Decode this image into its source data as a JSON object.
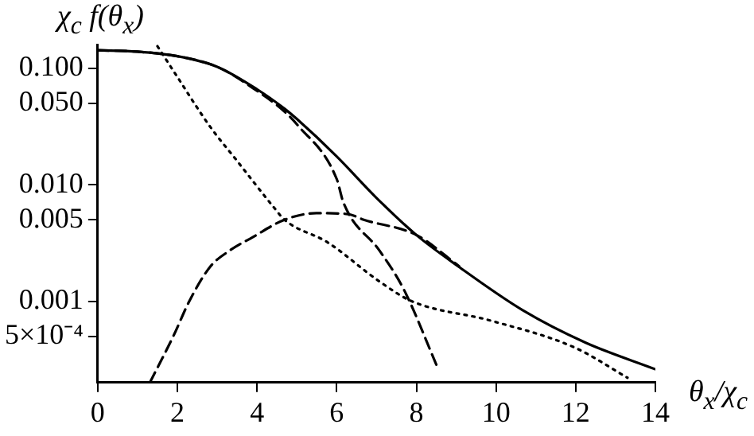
{
  "chart_data": {
    "type": "line",
    "xlabel": "θ$_{x}$/χ$_{c}$",
    "ylabel": "χ$_{c}$ f(θ$_{x}$)",
    "log": "y",
    "grid": false,
    "legend": false,
    "marker": "none",
    "xlim": [
      0,
      14
    ],
    "xticks": [
      0,
      2,
      4,
      6,
      8,
      10,
      12,
      14
    ],
    "ylim": [
      0.0002,
      0.16
    ],
    "yticks": [
      {
        "value": 0.1,
        "label": "0.100"
      },
      {
        "value": 0.05,
        "label": "0.050"
      },
      {
        "value": 0.01,
        "label": "0.010"
      },
      {
        "value": 0.005,
        "label": "0.005"
      },
      {
        "value": 0.001,
        "label": "0.001"
      },
      {
        "value": 0.0005,
        "label": "5×10⁻⁴"
      }
    ],
    "series": [
      {
        "color": "#000000",
        "line_style": "solid",
        "x": [
          0,
          1,
          2,
          3,
          4,
          4.69,
          5,
          6,
          7,
          8,
          9.07,
          10.66,
          12.25,
          14
        ],
        "values": [
          0.143,
          0.139,
          0.127,
          0.103,
          0.066,
          0.045,
          0.0367,
          0.0175,
          0.0077,
          0.0037,
          0.00197,
          0.00084,
          0.00044,
          0.00026
        ]
      },
      {
        "color": "#000000",
        "line_style": "dashed",
        "x": [
          0,
          1,
          2,
          3,
          4,
          4.69,
          5,
          6,
          6.17,
          7.08,
          7.68,
          8.55
        ],
        "values": [
          0.143,
          0.139,
          0.127,
          0.103,
          0.064,
          0.0425,
          0.033,
          0.0112,
          0.007,
          0.0027,
          0.00127,
          0.00026
        ]
      },
      {
        "color": "#000000",
        "line_style": "dotted",
        "x": [
          1.5,
          1.91,
          2.82,
          3.5,
          4.42,
          4.69,
          5.77,
          7.08,
          7.88,
          9.87,
          11.97,
          13.3
        ],
        "values": [
          0.155,
          0.094,
          0.0316,
          0.016,
          0.0064,
          0.005,
          0.0032,
          0.00147,
          0.001,
          0.00068,
          0.0004,
          0.00022
        ]
      },
      {
        "color": "#000000",
        "line_style": "dashed",
        "x": [
          1.31,
          1.91,
          2.3,
          2.82,
          3.3,
          3.9,
          4.69,
          5.49,
          6.28,
          6.68,
          8,
          9.07
        ],
        "values": [
          0.0002,
          0.00051,
          0.001,
          0.00197,
          0.0027,
          0.00356,
          0.005,
          0.0057,
          0.0056,
          0.005,
          0.0037,
          0.002
        ]
      }
    ]
  }
}
